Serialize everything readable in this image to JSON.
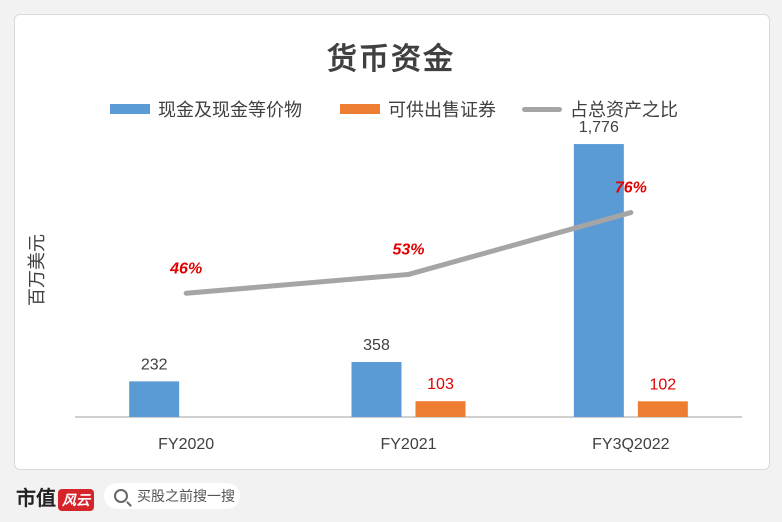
{
  "chart_data": {
    "type": "bar",
    "title": "货币资金",
    "ylabel": "百万美元",
    "categories": [
      "FY2020",
      "FY2021",
      "FY3Q2022"
    ],
    "series": [
      {
        "name": "现金及现金等价物",
        "values": [
          232,
          358,
          1776
        ],
        "labels": [
          "232",
          "358",
          "1,776"
        ],
        "color": "#5b9bd5"
      },
      {
        "name": "可供出售证券",
        "values": [
          null,
          103,
          102
        ],
        "labels": [
          "",
          "103",
          "102"
        ],
        "color": "#ed7d31"
      }
    ],
    "line_series": {
      "name": "占总资产之比",
      "values": [
        46,
        53,
        76
      ],
      "labels": [
        "46%",
        "53%",
        "76%"
      ],
      "color": "#a5a5a5",
      "label_color": "#e00000"
    },
    "ylim": [
      0,
      1900
    ],
    "line_ylim": [
      0,
      100
    ],
    "grid": false,
    "legend": "top"
  },
  "footer": {
    "logo_text": "市值",
    "logo_mark": "风云",
    "search_placeholder": "买股之前搜一搜",
    "search_icon": "search-icon"
  },
  "watermark": "市值风云"
}
